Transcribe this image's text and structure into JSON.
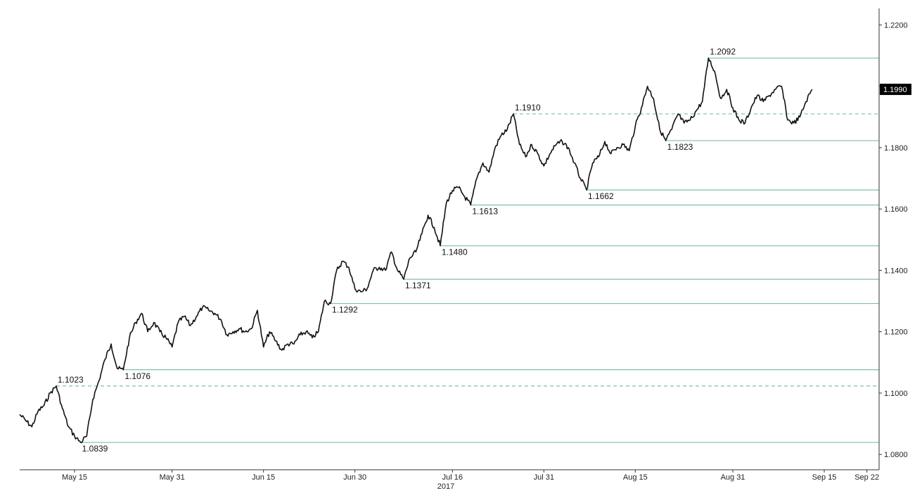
{
  "chart_data": {
    "type": "line",
    "title": "",
    "xlabel": "",
    "ylabel": "",
    "year_label": "2017",
    "x_ticks": [
      {
        "date": "2017-05-15",
        "label": "May 15"
      },
      {
        "date": "2017-05-31",
        "label": "May 31"
      },
      {
        "date": "2017-06-15",
        "label": "Jun 15"
      },
      {
        "date": "2017-06-30",
        "label": "Jun 30"
      },
      {
        "date": "2017-07-16",
        "label": "Jul 16"
      },
      {
        "date": "2017-07-31",
        "label": "Jul 31"
      },
      {
        "date": "2017-08-15",
        "label": "Aug 15"
      },
      {
        "date": "2017-08-31",
        "label": "Aug 31"
      },
      {
        "date": "2017-09-15",
        "label": "Sep 15"
      },
      {
        "date": "2017-09-22",
        "label": "Sep 22"
      }
    ],
    "y_ticks": [
      "1.0800",
      "1.1000",
      "1.1200",
      "1.1400",
      "1.1600",
      "1.1800",
      "1.2000",
      "1.2200"
    ],
    "ylim": [
      1.075,
      1.224
    ],
    "xlim": [
      "2017-05-06",
      "2017-09-24"
    ],
    "grid": false,
    "legend": "none",
    "colors": {
      "line": "#111111",
      "level": "#7fbfa8",
      "axis": "#333333",
      "last_bg": "#000000",
      "last_fg": "#ffffff"
    },
    "last_value": {
      "label": "1.1990",
      "value": 1.199
    },
    "series": [
      {
        "values": [
          [
            "2017-05-06",
            1.093
          ],
          [
            "2017-05-07",
            1.091
          ],
          [
            "2017-05-08",
            1.089
          ],
          [
            "2017-05-09",
            1.094
          ],
          [
            "2017-05-10",
            1.096
          ],
          [
            "2017-05-11",
            1.1
          ],
          [
            "2017-05-12",
            1.1023
          ],
          [
            "2017-05-13",
            1.095
          ],
          [
            "2017-05-14",
            1.089
          ],
          [
            "2017-05-15",
            1.086
          ],
          [
            "2017-05-16",
            1.0839
          ],
          [
            "2017-05-17",
            1.086
          ],
          [
            "2017-05-18",
            1.098
          ],
          [
            "2017-05-19",
            1.104
          ],
          [
            "2017-05-20",
            1.111
          ],
          [
            "2017-05-21",
            1.116
          ],
          [
            "2017-05-22",
            1.108
          ],
          [
            "2017-05-23",
            1.1076
          ],
          [
            "2017-05-24",
            1.118
          ],
          [
            "2017-05-25",
            1.123
          ],
          [
            "2017-05-26",
            1.126
          ],
          [
            "2017-05-27",
            1.12
          ],
          [
            "2017-05-28",
            1.123
          ],
          [
            "2017-05-29",
            1.12
          ],
          [
            "2017-05-30",
            1.118
          ],
          [
            "2017-05-31",
            1.115
          ],
          [
            "2017-06-01",
            1.123
          ],
          [
            "2017-06-02",
            1.125
          ],
          [
            "2017-06-03",
            1.122
          ],
          [
            "2017-06-04",
            1.125
          ],
          [
            "2017-06-05",
            1.128
          ],
          [
            "2017-06-06",
            1.127
          ],
          [
            "2017-06-07",
            1.126
          ],
          [
            "2017-06-08",
            1.124
          ],
          [
            "2017-06-09",
            1.119
          ],
          [
            "2017-06-10",
            1.12
          ],
          [
            "2017-06-11",
            1.121
          ],
          [
            "2017-06-12",
            1.12
          ],
          [
            "2017-06-13",
            1.121
          ],
          [
            "2017-06-14",
            1.127
          ],
          [
            "2017-06-15",
            1.115
          ],
          [
            "2017-06-16",
            1.12
          ],
          [
            "2017-06-17",
            1.117
          ],
          [
            "2017-06-18",
            1.114
          ],
          [
            "2017-06-19",
            1.116
          ],
          [
            "2017-06-20",
            1.116
          ],
          [
            "2017-06-21",
            1.119
          ],
          [
            "2017-06-22",
            1.12
          ],
          [
            "2017-06-23",
            1.118
          ],
          [
            "2017-06-24",
            1.12
          ],
          [
            "2017-06-25",
            1.13
          ],
          [
            "2017-06-26",
            1.1292
          ],
          [
            "2017-06-27",
            1.14
          ],
          [
            "2017-06-28",
            1.143
          ],
          [
            "2017-06-29",
            1.141
          ],
          [
            "2017-06-30",
            1.134
          ],
          [
            "2017-07-01",
            1.133
          ],
          [
            "2017-07-02",
            1.134
          ],
          [
            "2017-07-03",
            1.14
          ],
          [
            "2017-07-04",
            1.141
          ],
          [
            "2017-07-05",
            1.14
          ],
          [
            "2017-07-06",
            1.146
          ],
          [
            "2017-07-07",
            1.14
          ],
          [
            "2017-07-08",
            1.1371
          ],
          [
            "2017-07-09",
            1.144
          ],
          [
            "2017-07-10",
            1.146
          ],
          [
            "2017-07-11",
            1.152
          ],
          [
            "2017-07-12",
            1.158
          ],
          [
            "2017-07-13",
            1.154
          ],
          [
            "2017-07-14",
            1.148
          ],
          [
            "2017-07-15",
            1.162
          ],
          [
            "2017-07-16",
            1.166
          ],
          [
            "2017-07-17",
            1.167
          ],
          [
            "2017-07-18",
            1.164
          ],
          [
            "2017-07-19",
            1.1613
          ],
          [
            "2017-07-20",
            1.17
          ],
          [
            "2017-07-21",
            1.175
          ],
          [
            "2017-07-22",
            1.172
          ],
          [
            "2017-07-23",
            1.18
          ],
          [
            "2017-07-24",
            1.184
          ],
          [
            "2017-07-25",
            1.186
          ],
          [
            "2017-07-26",
            1.191
          ],
          [
            "2017-07-27",
            1.181
          ],
          [
            "2017-07-28",
            1.177
          ],
          [
            "2017-07-29",
            1.181
          ],
          [
            "2017-07-30",
            1.178
          ],
          [
            "2017-07-31",
            1.174
          ],
          [
            "2017-08-01",
            1.178
          ],
          [
            "2017-08-02",
            1.181
          ],
          [
            "2017-08-03",
            1.182
          ],
          [
            "2017-08-04",
            1.18
          ],
          [
            "2017-08-05",
            1.175
          ],
          [
            "2017-08-06",
            1.17
          ],
          [
            "2017-08-07",
            1.1662
          ],
          [
            "2017-08-08",
            1.175
          ],
          [
            "2017-08-09",
            1.177
          ],
          [
            "2017-08-10",
            1.182
          ],
          [
            "2017-08-11",
            1.178
          ],
          [
            "2017-08-12",
            1.18
          ],
          [
            "2017-08-13",
            1.181
          ],
          [
            "2017-08-14",
            1.179
          ],
          [
            "2017-08-15",
            1.187
          ],
          [
            "2017-08-16",
            1.193
          ],
          [
            "2017-08-17",
            1.2
          ],
          [
            "2017-08-18",
            1.196
          ],
          [
            "2017-08-19",
            1.186
          ],
          [
            "2017-08-20",
            1.1823
          ],
          [
            "2017-08-21",
            1.186
          ],
          [
            "2017-08-22",
            1.191
          ],
          [
            "2017-08-23",
            1.188
          ],
          [
            "2017-08-24",
            1.189
          ],
          [
            "2017-08-25",
            1.192
          ],
          [
            "2017-08-26",
            1.195
          ],
          [
            "2017-08-27",
            1.2092
          ],
          [
            "2017-08-28",
            1.205
          ],
          [
            "2017-08-29",
            1.196
          ],
          [
            "2017-08-30",
            1.199
          ],
          [
            "2017-08-31",
            1.193
          ],
          [
            "2017-09-01",
            1.189
          ],
          [
            "2017-09-02",
            1.188
          ],
          [
            "2017-09-03",
            1.193
          ],
          [
            "2017-09-04",
            1.197
          ],
          [
            "2017-09-05",
            1.195
          ],
          [
            "2017-09-06",
            1.197
          ],
          [
            "2017-09-07",
            1.199
          ],
          [
            "2017-09-08",
            1.2
          ],
          [
            "2017-09-09",
            1.189
          ],
          [
            "2017-09-10",
            1.188
          ],
          [
            "2017-09-11",
            1.19
          ],
          [
            "2017-09-12",
            1.195
          ],
          [
            "2017-09-13",
            1.199
          ]
        ]
      }
    ],
    "levels": [
      {
        "label": "1.0839",
        "value": 1.0839,
        "date": "2017-05-16",
        "style": "solid"
      },
      {
        "label": "1.1023",
        "value": 1.1023,
        "date": "2017-05-12",
        "style": "dashed"
      },
      {
        "label": "1.1076",
        "value": 1.1076,
        "date": "2017-05-23",
        "style": "solid"
      },
      {
        "label": "1.1292",
        "value": 1.1292,
        "date": "2017-06-26",
        "style": "solid"
      },
      {
        "label": "1.1371",
        "value": 1.1371,
        "date": "2017-07-08",
        "style": "solid"
      },
      {
        "label": "1.1480",
        "value": 1.148,
        "date": "2017-07-14",
        "style": "solid"
      },
      {
        "label": "1.1613",
        "value": 1.1613,
        "date": "2017-07-19",
        "style": "solid"
      },
      {
        "label": "1.1662",
        "value": 1.1662,
        "date": "2017-08-07",
        "style": "solid"
      },
      {
        "label": "1.1823",
        "value": 1.1823,
        "date": "2017-08-20",
        "style": "solid"
      },
      {
        "label": "1.1910",
        "value": 1.191,
        "date": "2017-07-26",
        "style": "dashed"
      },
      {
        "label": "1.2092",
        "value": 1.2092,
        "date": "2017-08-27",
        "style": "solid"
      }
    ]
  }
}
